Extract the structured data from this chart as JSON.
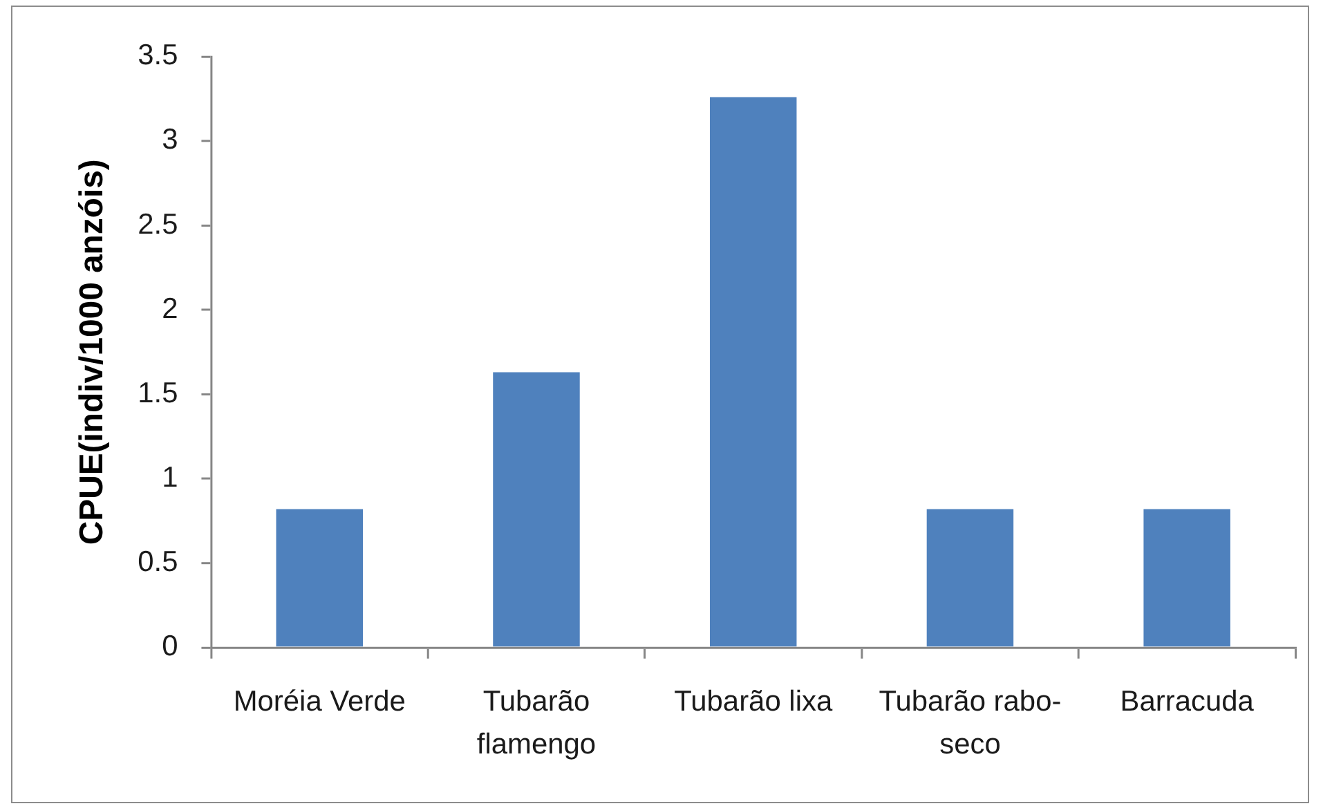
{
  "chart_data": {
    "type": "bar",
    "ylabel": "CPUE(indiv/1000 anzóis)",
    "categories": [
      "Moréia Verde",
      "Tubarão flamengo",
      "Tubarão lixa",
      "Tubarão rabo-seco",
      "Barracuda"
    ],
    "values": [
      0.82,
      1.63,
      3.26,
      0.82,
      0.82
    ],
    "color": "#4f81bd",
    "ylim": [
      0,
      3.5
    ],
    "yticks": [
      0,
      0.5,
      1,
      1.5,
      2,
      2.5,
      3,
      3.5
    ]
  }
}
